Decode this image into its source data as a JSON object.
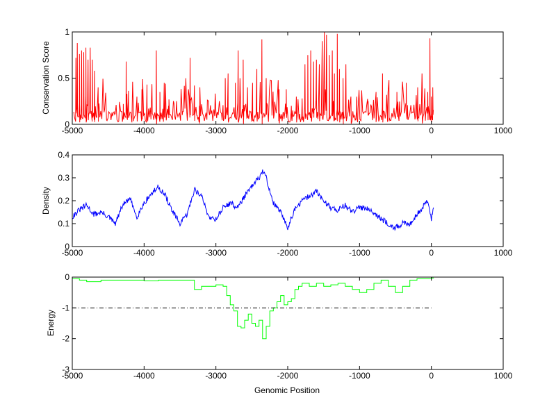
{
  "chart_data": [
    {
      "type": "line",
      "ylabel": "Conservation Score",
      "xlabel": "",
      "xlim": [
        -5000,
        1000
      ],
      "ylim": [
        0,
        1
      ],
      "xticks": [
        -5000,
        -4000,
        -3000,
        -2000,
        -1000,
        0,
        1000
      ],
      "yticks": [
        0,
        0.5,
        1
      ],
      "color": "#ff0000",
      "series": [
        {
          "style": "spiky",
          "x_range": [
            -4980,
            30
          ],
          "baseline": 0.12,
          "peaks": [
            {
              "x": -4950,
              "y": 0.72
            },
            {
              "x": -4930,
              "y": 0.88
            },
            {
              "x": -4900,
              "y": 0.76
            },
            {
              "x": -4870,
              "y": 0.8
            },
            {
              "x": -4840,
              "y": 0.78
            },
            {
              "x": -4810,
              "y": 0.83
            },
            {
              "x": -4780,
              "y": 0.7
            },
            {
              "x": -4750,
              "y": 0.83
            },
            {
              "x": -4720,
              "y": 0.7
            },
            {
              "x": -4690,
              "y": 0.58
            },
            {
              "x": -4640,
              "y": 0.4
            },
            {
              "x": -4290,
              "y": 0.22
            },
            {
              "x": -4250,
              "y": 0.68
            },
            {
              "x": -4220,
              "y": 0.25
            },
            {
              "x": -4150,
              "y": 0.2
            },
            {
              "x": -4100,
              "y": 0.3
            },
            {
              "x": -4030,
              "y": 0.38
            },
            {
              "x": -3960,
              "y": 0.43
            },
            {
              "x": -3890,
              "y": 0.4
            },
            {
              "x": -3830,
              "y": 0.8
            },
            {
              "x": -3780,
              "y": 0.35
            },
            {
              "x": -3720,
              "y": 0.45
            },
            {
              "x": -3660,
              "y": 0.2
            },
            {
              "x": -3360,
              "y": 0.72
            },
            {
              "x": -3300,
              "y": 0.42
            },
            {
              "x": -3230,
              "y": 0.2
            },
            {
              "x": -2870,
              "y": 0.5
            },
            {
              "x": -2830,
              "y": 0.55
            },
            {
              "x": -2730,
              "y": 0.45
            },
            {
              "x": -2690,
              "y": 0.8
            },
            {
              "x": -2620,
              "y": 0.7
            },
            {
              "x": -2560,
              "y": 0.4
            },
            {
              "x": -2490,
              "y": 0.45
            },
            {
              "x": -2430,
              "y": 0.6
            },
            {
              "x": -2360,
              "y": 0.92
            },
            {
              "x": -2300,
              "y": 0.5
            },
            {
              "x": -2200,
              "y": 0.2
            },
            {
              "x": -2120,
              "y": 0.38
            },
            {
              "x": -2020,
              "y": 0.38
            },
            {
              "x": -1950,
              "y": 0.2
            },
            {
              "x": -1880,
              "y": 0.3
            },
            {
              "x": -1800,
              "y": 0.28
            },
            {
              "x": -1760,
              "y": 0.65
            },
            {
              "x": -1720,
              "y": 0.75
            },
            {
              "x": -1680,
              "y": 0.8
            },
            {
              "x": -1640,
              "y": 0.68
            },
            {
              "x": -1600,
              "y": 0.7
            },
            {
              "x": -1560,
              "y": 0.65
            },
            {
              "x": -1520,
              "y": 0.9
            },
            {
              "x": -1490,
              "y": 1.0
            },
            {
              "x": -1460,
              "y": 0.97
            },
            {
              "x": -1420,
              "y": 0.75
            },
            {
              "x": -1380,
              "y": 0.8
            },
            {
              "x": -1350,
              "y": 0.55
            },
            {
              "x": -1310,
              "y": 0.98
            },
            {
              "x": -1280,
              "y": 0.6
            },
            {
              "x": -1230,
              "y": 0.5
            },
            {
              "x": -1190,
              "y": 0.65
            },
            {
              "x": -1120,
              "y": 0.3
            },
            {
              "x": -1040,
              "y": 0.3
            },
            {
              "x": -880,
              "y": 0.25
            },
            {
              "x": -770,
              "y": 0.35
            },
            {
              "x": -680,
              "y": 0.55
            },
            {
              "x": -590,
              "y": 0.48
            },
            {
              "x": -480,
              "y": 0.35
            },
            {
              "x": -350,
              "y": 0.45
            },
            {
              "x": -190,
              "y": 0.4
            },
            {
              "x": -130,
              "y": 0.55
            },
            {
              "x": -50,
              "y": 0.35
            },
            {
              "x": -20,
              "y": 0.93
            },
            {
              "x": 0,
              "y": 0.3
            },
            {
              "x": 20,
              "y": 0.4
            }
          ]
        }
      ]
    },
    {
      "type": "line",
      "ylabel": "Density",
      "xlabel": "",
      "xlim": [
        -5000,
        1000
      ],
      "ylim": [
        0,
        0.4
      ],
      "xticks": [
        -5000,
        -4000,
        -3000,
        -2000,
        -1000,
        0,
        1000
      ],
      "yticks": [
        0,
        0.1,
        0.2,
        0.3,
        0.4
      ],
      "color": "#0000ff",
      "series": [
        {
          "x": [
            -5000,
            -4900,
            -4800,
            -4700,
            -4600,
            -4500,
            -4400,
            -4300,
            -4200,
            -4100,
            -4000,
            -3900,
            -3800,
            -3700,
            -3600,
            -3500,
            -3400,
            -3300,
            -3200,
            -3100,
            -3000,
            -2900,
            -2800,
            -2700,
            -2600,
            -2500,
            -2400,
            -2350,
            -2300,
            -2200,
            -2100,
            -2000,
            -1950,
            -1900,
            -1800,
            -1700,
            -1600,
            -1500,
            -1400,
            -1300,
            -1200,
            -1100,
            -1000,
            -900,
            -800,
            -700,
            -600,
            -500,
            -400,
            -300,
            -200,
            -100,
            -50,
            0,
            30
          ],
          "y": [
            0.13,
            0.16,
            0.18,
            0.14,
            0.15,
            0.13,
            0.1,
            0.18,
            0.21,
            0.13,
            0.19,
            0.23,
            0.26,
            0.22,
            0.15,
            0.1,
            0.14,
            0.25,
            0.22,
            0.13,
            0.12,
            0.17,
            0.19,
            0.17,
            0.22,
            0.26,
            0.3,
            0.33,
            0.3,
            0.19,
            0.15,
            0.08,
            0.13,
            0.16,
            0.2,
            0.22,
            0.24,
            0.2,
            0.17,
            0.16,
            0.18,
            0.15,
            0.17,
            0.17,
            0.15,
            0.12,
            0.1,
            0.08,
            0.1,
            0.1,
            0.14,
            0.18,
            0.2,
            0.12,
            0.17
          ]
        }
      ]
    },
    {
      "type": "line",
      "ylabel": "Energy",
      "xlabel": "Genomic Position",
      "xlim": [
        -5000,
        1000
      ],
      "ylim": [
        -3,
        0
      ],
      "xticks": [
        -5000,
        -4000,
        -3000,
        -2000,
        -1000,
        0,
        1000
      ],
      "yticks": [
        -3,
        -2,
        -1,
        0
      ],
      "series": [
        {
          "style": "step",
          "color": "#00ff00",
          "x": [
            -5000,
            -4900,
            -4800,
            -4600,
            -4400,
            -4200,
            -4000,
            -3800,
            -3600,
            -3400,
            -3300,
            -3200,
            -3000,
            -2900,
            -2850,
            -2800,
            -2750,
            -2700,
            -2650,
            -2600,
            -2550,
            -2500,
            -2450,
            -2400,
            -2350,
            -2300,
            -2250,
            -2200,
            -2150,
            -2100,
            -2050,
            -2000,
            -1950,
            -1900,
            -1850,
            -1800,
            -1700,
            -1600,
            -1500,
            -1400,
            -1300,
            -1200,
            -1100,
            -1000,
            -900,
            -800,
            -700,
            -600,
            -500,
            -400,
            -300,
            -200,
            -100,
            0,
            30
          ],
          "y": [
            -0.05,
            -0.1,
            -0.15,
            -0.1,
            -0.1,
            -0.1,
            -0.12,
            -0.1,
            -0.1,
            -0.1,
            -0.4,
            -0.3,
            -0.25,
            -0.3,
            -0.6,
            -0.9,
            -1.1,
            -1.6,
            -1.65,
            -1.4,
            -1.2,
            -1.5,
            -1.6,
            -1.4,
            -2.0,
            -1.6,
            -1.1,
            -1.0,
            -0.8,
            -0.6,
            -0.9,
            -0.8,
            -0.7,
            -0.4,
            -0.3,
            -0.2,
            -0.3,
            -0.2,
            -0.3,
            -0.25,
            -0.2,
            -0.3,
            -0.4,
            -0.5,
            -0.4,
            -0.2,
            -0.1,
            -0.3,
            -0.5,
            -0.3,
            -0.1,
            -0.05,
            -0.05,
            -0.03,
            -0.02
          ]
        },
        {
          "style": "dash-dot",
          "color": "#000000",
          "x": [
            -5000,
            0
          ],
          "y": [
            -1,
            -1
          ]
        }
      ]
    }
  ]
}
